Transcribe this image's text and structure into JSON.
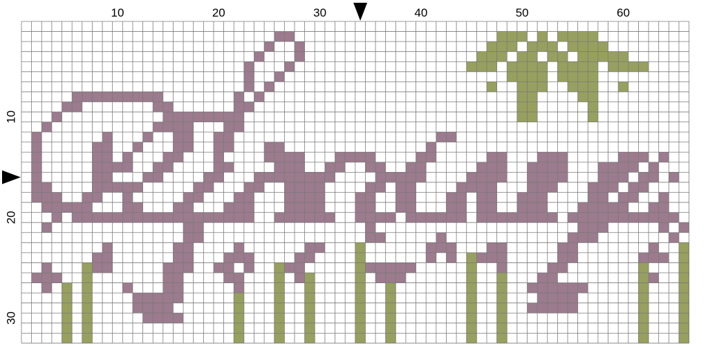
{
  "chart_data": {
    "type": "heatmap",
    "title": "",
    "xlabel": "",
    "ylabel": "",
    "columns": 66,
    "rows": 32,
    "x_ticks": [
      "10",
      "20",
      "30",
      "40",
      "50",
      "60"
    ],
    "x_tick_values": [
      10,
      20,
      30,
      40,
      50,
      60
    ],
    "y_ticks": [
      "10",
      "20",
      "30"
    ],
    "y_tick_values": [
      10,
      20,
      30
    ],
    "center_markers": {
      "column": 34,
      "row": 16
    },
    "colors": {
      "mauve": "#9b7b8d",
      "olive": "#97a05e",
      "grid": "#7a7a7a",
      "background": "#ffffff",
      "marker": "#000000"
    },
    "cells": [
      {
        "color": "mauve",
        "row": 2,
        "cols": [
          26,
          27
        ]
      },
      {
        "color": "olive",
        "row": 2,
        "cols": [
          48,
          49,
          50,
          52,
          54,
          55,
          56,
          57
        ]
      },
      {
        "color": "mauve",
        "row": 3,
        "cols": [
          25,
          28
        ]
      },
      {
        "color": "olive",
        "row": 3,
        "cols": [
          47,
          48,
          49,
          51,
          52,
          53,
          55,
          56,
          57,
          58
        ]
      },
      {
        "color": "mauve",
        "row": 4,
        "cols": [
          24,
          28
        ]
      },
      {
        "color": "olive",
        "row": 4,
        "cols": [
          46,
          47,
          48,
          50,
          51,
          53,
          54,
          56,
          57,
          58,
          59,
          60
        ]
      },
      {
        "color": "mauve",
        "row": 5,
        "cols": [
          23,
          27
        ]
      },
      {
        "color": "olive",
        "row": 5,
        "cols": [
          45,
          46,
          47,
          49,
          50,
          51,
          52,
          54,
          55,
          56,
          57,
          59,
          60,
          61,
          62
        ]
      },
      {
        "color": "mauve",
        "row": 6,
        "cols": [
          23,
          26
        ]
      },
      {
        "color": "olive",
        "row": 6,
        "cols": [
          49,
          50,
          51,
          52,
          54,
          55,
          56,
          57
        ]
      },
      {
        "color": "mauve",
        "row": 7,
        "cols": [
          23,
          25
        ]
      },
      {
        "color": "olive",
        "row": 7,
        "cols": [
          47,
          50,
          51,
          52,
          55,
          56,
          57,
          60
        ]
      },
      {
        "color": "mauve",
        "row": 8,
        "cols": [
          6,
          7,
          8,
          9,
          10,
          11,
          12,
          13,
          14,
          22,
          24
        ]
      },
      {
        "color": "olive",
        "row": 8,
        "cols": [
          50,
          51,
          56,
          57
        ]
      },
      {
        "color": "mauve",
        "row": 9,
        "cols": [
          5,
          6,
          14,
          15,
          22,
          23
        ]
      },
      {
        "color": "olive",
        "row": 9,
        "cols": [
          50,
          51,
          57
        ]
      },
      {
        "color": "mauve",
        "row": 10,
        "cols": [
          4,
          15,
          16,
          17,
          18,
          19,
          20,
          21,
          22
        ]
      },
      {
        "color": "olive",
        "row": 10,
        "cols": [
          50,
          51,
          57
        ]
      },
      {
        "color": "mauve",
        "row": 11,
        "cols": [
          3,
          14,
          15,
          16,
          17,
          21,
          22
        ]
      },
      {
        "color": "mauve",
        "row": 12,
        "cols": [
          2,
          9,
          13,
          16,
          17,
          20,
          21,
          42,
          43
        ]
      },
      {
        "color": "mauve",
        "row": 13,
        "cols": [
          2,
          8,
          9,
          12,
          16,
          17,
          20,
          21,
          25,
          26,
          41
        ]
      },
      {
        "color": "mauve",
        "row": 14,
        "cols": [
          2,
          8,
          9,
          11,
          15,
          16,
          20,
          25,
          26,
          27,
          28,
          32,
          33,
          34,
          35,
          40,
          41,
          47,
          48,
          52,
          53,
          54,
          60,
          61,
          62,
          64
        ]
      },
      {
        "color": "mauve",
        "row": 15,
        "cols": [
          2,
          8,
          9,
          10,
          11,
          14,
          15,
          20,
          21,
          26,
          27,
          28,
          31,
          32,
          35,
          36,
          39,
          40,
          46,
          47,
          48,
          51,
          52,
          53,
          54,
          58,
          59,
          60,
          61,
          63
        ]
      },
      {
        "color": "mauve",
        "row": 16,
        "cols": [
          2,
          8,
          9,
          13,
          14,
          19,
          20,
          24,
          25,
          26,
          27,
          28,
          29,
          30,
          31,
          36,
          37,
          38,
          39,
          40,
          45,
          46,
          47,
          48,
          51,
          52,
          53,
          54,
          58,
          59,
          60,
          62,
          63,
          65
        ]
      },
      {
        "color": "mauve",
        "row": 17,
        "cols": [
          2,
          3,
          8,
          9,
          10,
          11,
          12,
          18,
          19,
          23,
          24,
          27,
          28,
          29,
          30,
          35,
          36,
          38,
          39,
          44,
          45,
          46,
          47,
          51,
          52,
          53,
          57,
          58,
          59,
          61,
          62
        ]
      },
      {
        "color": "mauve",
        "row": 18,
        "cols": [
          2,
          3,
          4,
          7,
          8,
          11,
          17,
          18,
          22,
          23,
          27,
          28,
          29,
          30,
          34,
          35,
          38,
          39,
          43,
          44,
          46,
          47,
          50,
          51,
          52,
          57,
          58,
          60,
          61,
          64
        ]
      },
      {
        "color": "mauve",
        "row": 19,
        "cols": [
          3,
          4,
          5,
          6,
          7,
          11,
          12,
          16,
          17,
          21,
          22,
          23,
          27,
          28,
          29,
          30,
          34,
          35,
          38,
          39,
          43,
          44,
          46,
          47,
          50,
          51,
          52,
          56,
          57,
          58,
          59,
          60,
          63,
          64
        ]
      },
      {
        "color": "mauve",
        "row": 20,
        "cols": [
          4,
          6,
          7,
          8,
          9,
          10,
          11,
          12,
          13,
          14,
          15,
          16,
          17,
          18,
          19,
          20,
          21,
          22,
          23,
          26,
          27,
          28,
          29,
          30,
          31,
          34,
          35,
          36,
          37,
          39,
          40,
          41,
          42,
          43,
          44,
          46,
          47,
          48,
          49,
          50,
          51,
          52,
          53,
          55,
          56,
          57,
          58,
          59,
          60,
          61,
          62,
          63,
          64,
          65
        ]
      },
      {
        "color": "mauve",
        "row": 21,
        "cols": [
          3,
          17,
          18,
          35,
          56,
          57,
          58,
          64,
          66
        ]
      },
      {
        "color": "mauve",
        "row": 22,
        "cols": [
          17,
          18,
          35,
          36,
          42,
          55,
          56,
          57,
          65
        ]
      },
      {
        "color": "mauve",
        "row": 23,
        "cols": [
          9,
          16,
          17,
          22,
          29,
          30,
          41,
          42,
          43,
          47,
          48,
          54,
          55,
          63
        ]
      },
      {
        "color": "olive",
        "row": 23,
        "cols": [
          34,
          66
        ]
      },
      {
        "color": "mauve",
        "row": 24,
        "cols": [
          8,
          9,
          16,
          17,
          21,
          22,
          23,
          28,
          29,
          41,
          43,
          46,
          47,
          48,
          54,
          55,
          62,
          63,
          64
        ]
      },
      {
        "color": "olive",
        "row": 24,
        "cols": [
          34,
          45,
          66
        ]
      },
      {
        "color": "mauve",
        "row": 25,
        "cols": [
          3,
          8,
          9,
          15,
          16,
          17,
          20,
          21,
          23,
          27,
          28,
          35,
          36,
          37,
          38,
          39,
          45,
          48,
          53,
          54
        ]
      },
      {
        "color": "olive",
        "row": 25,
        "cols": [
          7,
          26,
          34,
          45,
          62,
          66
        ]
      },
      {
        "color": "mauve",
        "row": 26,
        "cols": [
          2,
          3,
          4,
          15,
          16,
          21,
          22,
          28,
          36,
          37,
          38,
          52,
          53,
          63
        ]
      },
      {
        "color": "olive",
        "row": 26,
        "cols": [
          7,
          26,
          29,
          34,
          45,
          48,
          62,
          66
        ]
      },
      {
        "color": "mauve",
        "row": 27,
        "cols": [
          3,
          11,
          15,
          16,
          22,
          51,
          52,
          53,
          54,
          55,
          56
        ]
      },
      {
        "color": "olive",
        "row": 27,
        "cols": [
          5,
          7,
          26,
          29,
          34,
          37,
          45,
          48,
          62,
          66
        ]
      },
      {
        "color": "mauve",
        "row": 28,
        "cols": [
          12,
          13,
          14,
          15,
          16,
          52,
          53,
          54,
          55
        ]
      },
      {
        "color": "olive",
        "row": 28,
        "cols": [
          5,
          7,
          22,
          26,
          29,
          34,
          37,
          45,
          48,
          62,
          66
        ]
      },
      {
        "color": "mauve",
        "row": 29,
        "cols": [
          12,
          13,
          14,
          15,
          51,
          52,
          53,
          54,
          55
        ]
      },
      {
        "color": "olive",
        "row": 29,
        "cols": [
          5,
          7,
          22,
          26,
          29,
          34,
          37,
          45,
          48,
          62,
          66
        ]
      },
      {
        "color": "mauve",
        "row": 30,
        "cols": [
          13,
          14,
          15,
          16
        ]
      },
      {
        "color": "olive",
        "row": 30,
        "cols": [
          5,
          7,
          22,
          26,
          29,
          34,
          37,
          45,
          48,
          62,
          66
        ]
      },
      {
        "color": "olive",
        "row": 31,
        "cols": [
          5,
          7,
          22,
          26,
          29,
          34,
          37,
          45,
          48,
          62,
          66
        ]
      },
      {
        "color": "olive",
        "row": 32,
        "cols": [
          5,
          7,
          22,
          26,
          29,
          34,
          37,
          45,
          48,
          62,
          66
        ]
      }
    ]
  }
}
